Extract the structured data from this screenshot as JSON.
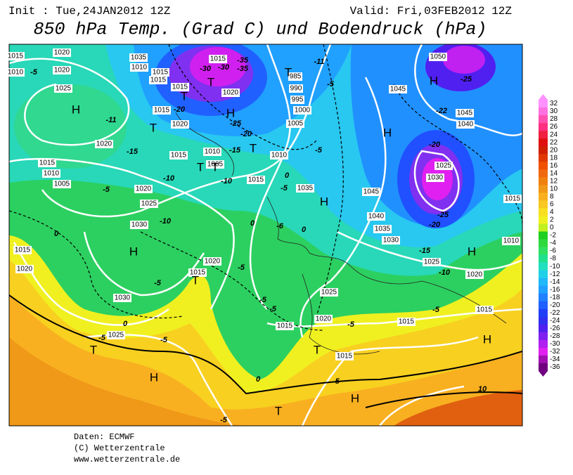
{
  "header": {
    "init": "Init : Tue,24JAN2012 12Z",
    "valid": "Valid: Fri,03FEB2012 12Z",
    "title": "850 hPa Temp. (Grad C) und Bodendruck (hPa)"
  },
  "colorbar": {
    "levels": [
      32,
      30,
      28,
      26,
      24,
      22,
      20,
      18,
      16,
      14,
      12,
      10,
      8,
      6,
      4,
      2,
      0,
      -2,
      -4,
      -6,
      -8,
      -10,
      -12,
      -14,
      -16,
      -18,
      -20,
      -22,
      -24,
      -26,
      -28,
      -30,
      -32,
      -34,
      -36
    ],
    "colors": [
      "#ff90ff",
      "#ff70e0",
      "#ff50b0",
      "#ff3080",
      "#f02040",
      "#e01010",
      "#d02000",
      "#e03800",
      "#f05000",
      "#f06810",
      "#f08010",
      "#f09818",
      "#f8b020",
      "#f8c820",
      "#f8e020",
      "#f0f020",
      "#c0f020",
      "#20d020",
      "#30d840",
      "#30e060",
      "#20e090",
      "#20e0c0",
      "#20d0e8",
      "#20b8f8",
      "#20a0ff",
      "#2080ff",
      "#2060ff",
      "#2040f8",
      "#3030f0",
      "#5020f0",
      "#8020f0",
      "#b020f0",
      "#e020f0",
      "#a010b0",
      "#700080"
    ]
  },
  "map": {
    "isobar_labels": [
      "1015",
      "1010",
      "1020",
      "1020",
      "1025",
      "1035",
      "1010",
      "1015",
      "1015",
      "1015",
      "1015",
      "1020",
      "1015",
      "985",
      "990",
      "995",
      "1000",
      "1005",
      "1010",
      "1020",
      "1045",
      "1050",
      "1045",
      "1040",
      "1020",
      "1015",
      "1010",
      "1005",
      "1015",
      "1015",
      "1010",
      "1005",
      "1020",
      "1025",
      "1030",
      "1035",
      "1045",
      "1040",
      "1035",
      "1030",
      "1025",
      "1030",
      "1025",
      "1020",
      "1010",
      "1015",
      "1015",
      "1020",
      "1015",
      "1020",
      "1030",
      "1025",
      "1020",
      "1015",
      "1015",
      "1015",
      "1025",
      "1015"
    ],
    "temperature_labels": [
      "-5",
      "-30",
      "-30",
      "-35",
      "-35",
      "-11",
      "-5",
      "-25",
      "-20",
      "-25",
      "-20",
      "-11",
      "-15",
      "-15",
      "-10",
      "-10",
      "0",
      "-5",
      "-5",
      "-5",
      "-20",
      "-25",
      "-20",
      "-10",
      "-6",
      "0",
      "0",
      "0",
      "-15",
      "-10",
      "-5",
      "-5",
      "-5",
      "-5",
      "-5",
      "-5",
      "0",
      "-5",
      "-5",
      "0",
      "-5",
      "-5",
      "10",
      "-22"
    ],
    "centers": [
      "H",
      "T",
      "T",
      "T",
      "H",
      "T",
      "T",
      "T",
      "T",
      "H",
      "H",
      "H",
      "H",
      "T",
      "H",
      "T",
      "H",
      "T",
      "H",
      "T",
      "H"
    ]
  },
  "footer": {
    "source": "Daten: ECMWF",
    "copyright": "(C) Wetterzentrale",
    "url": "www.wetterzentrale.de"
  }
}
